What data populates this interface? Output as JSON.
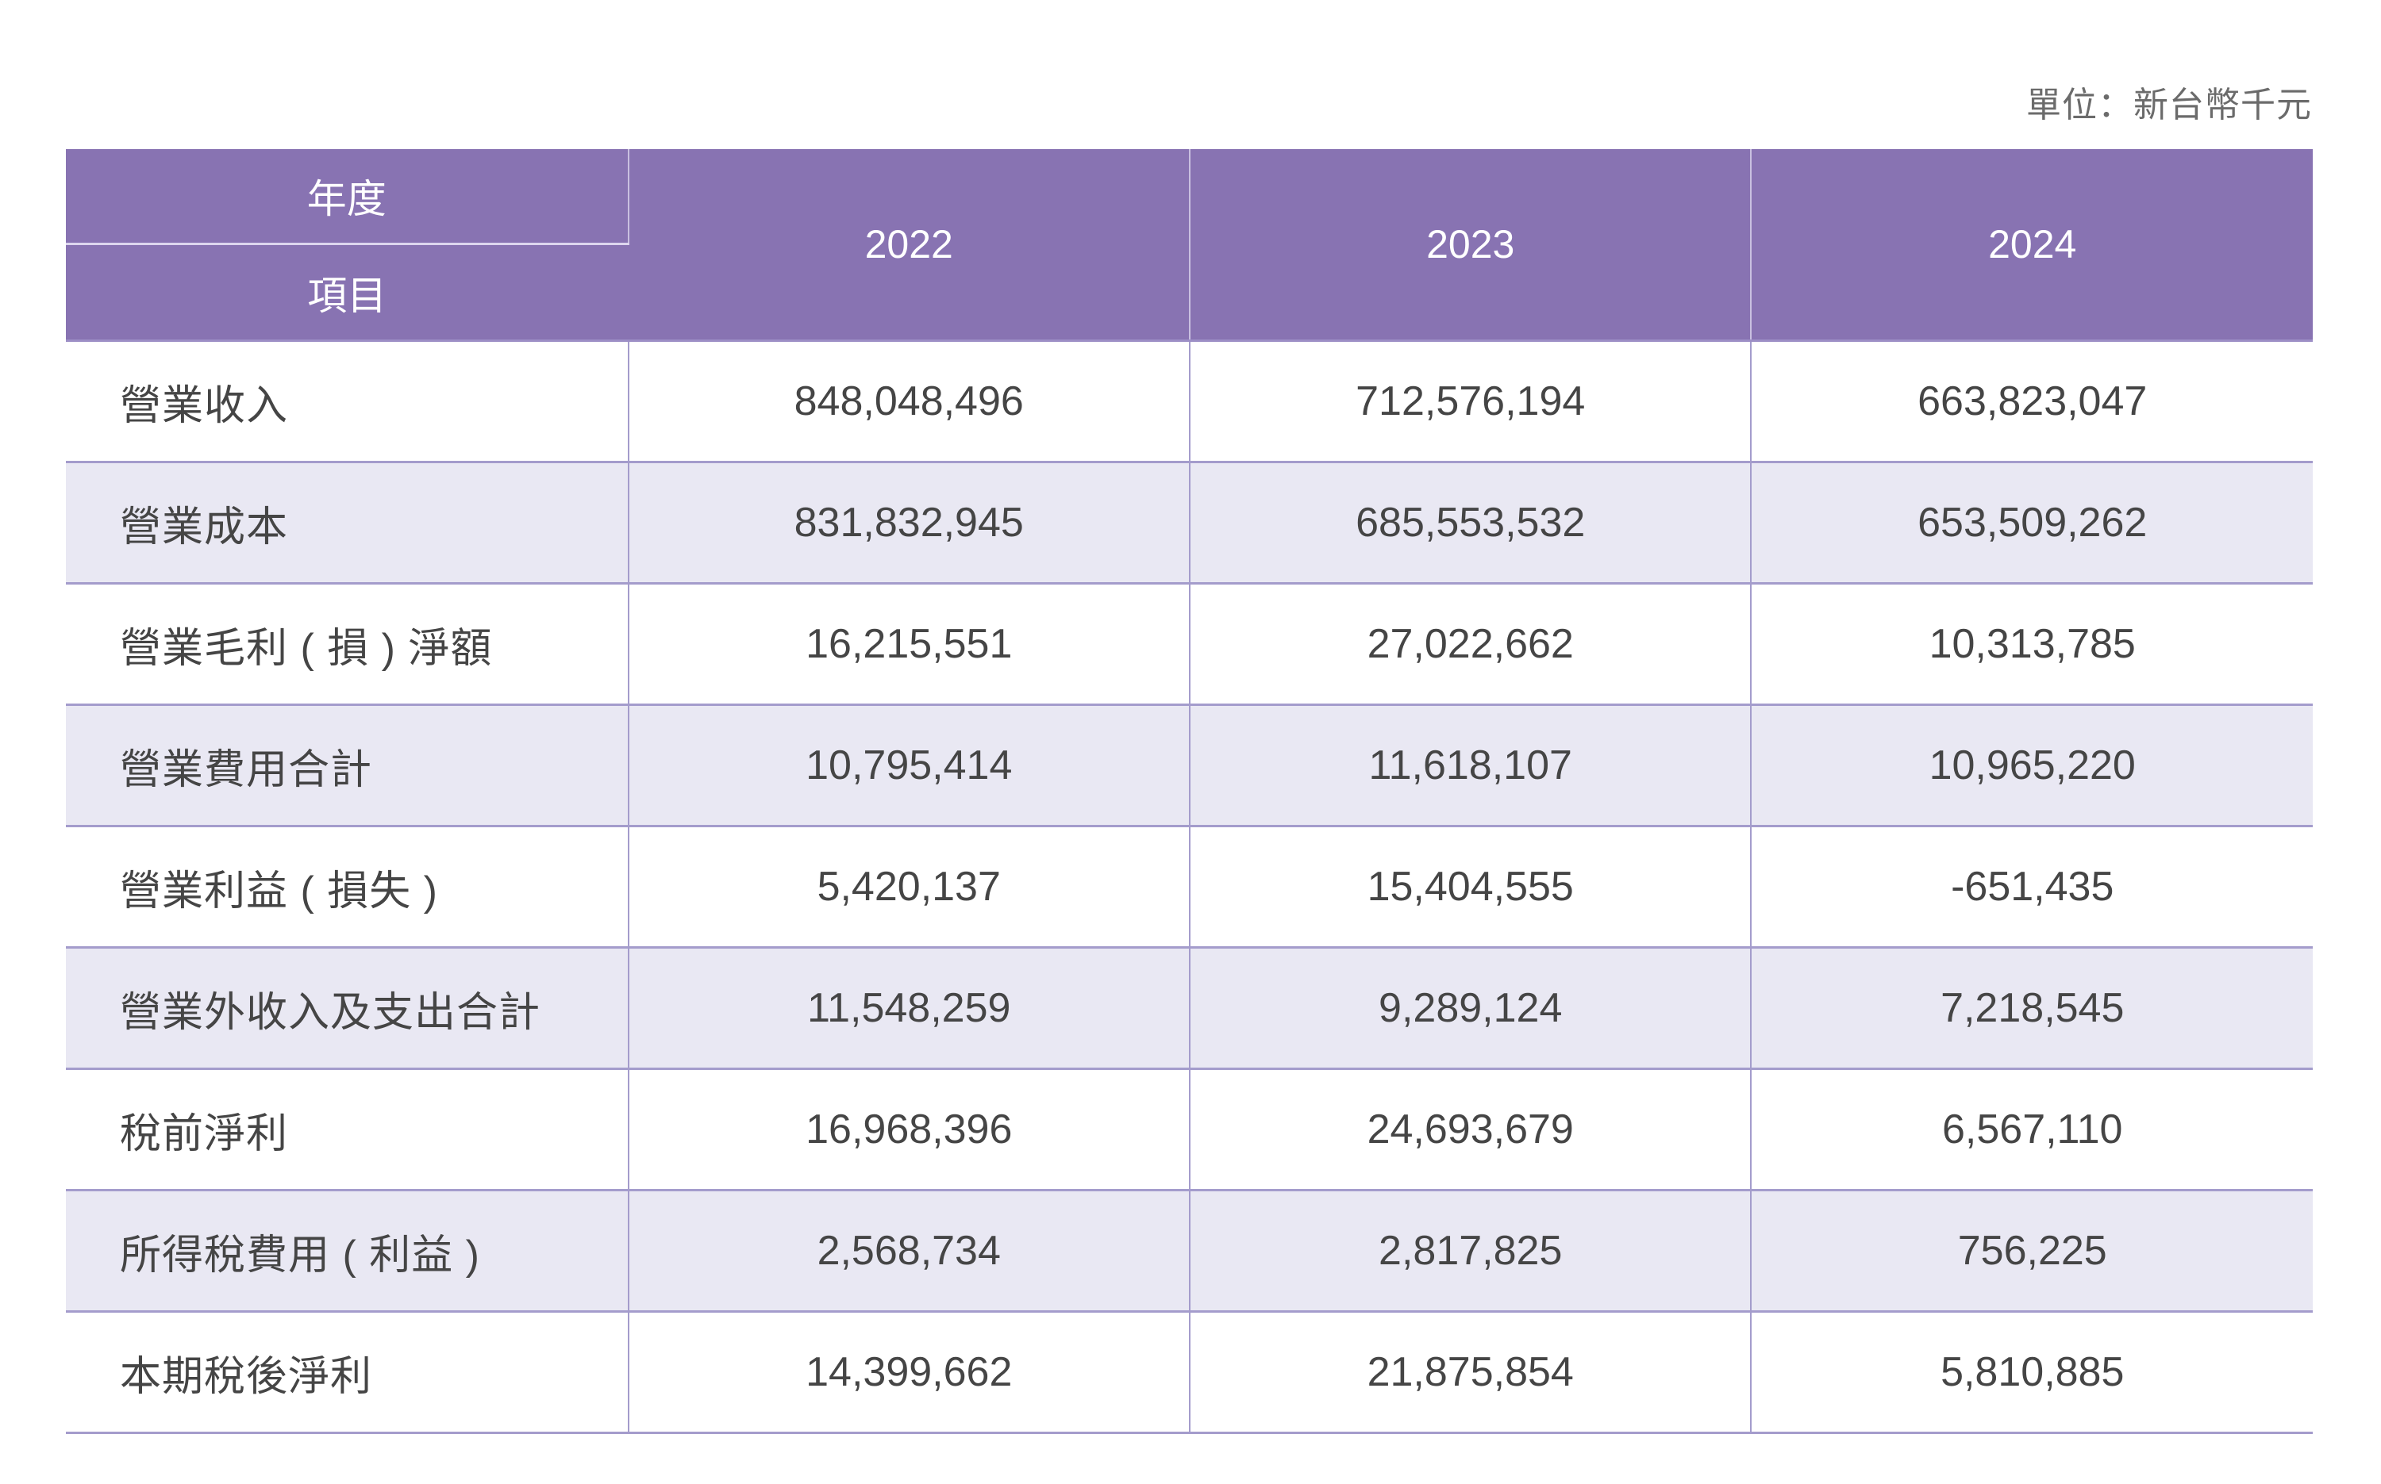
{
  "unit_label": "單位：新台幣千元",
  "header": {
    "corner_top": "年度",
    "corner_bottom": "項目",
    "years": [
      "2022",
      "2023",
      "2024"
    ]
  },
  "colors": {
    "header_bg": "#8873b2",
    "header_text": "#ffffff",
    "alt_row_bg": "#e9e8f3",
    "grid_line": "#a49ccc",
    "body_text": "#454545"
  },
  "rows": [
    {
      "item": "營業收入",
      "values": [
        "848,048,496",
        "712,576,194",
        "663,823,047"
      ]
    },
    {
      "item": "營業成本",
      "values": [
        "831,832,945",
        "685,553,532",
        "653,509,262"
      ]
    },
    {
      "item": "營業毛利 ( 損 ) 淨額",
      "values": [
        "16,215,551",
        "27,022,662",
        "10,313,785"
      ]
    },
    {
      "item": "營業費用合計",
      "values": [
        "10,795,414",
        "11,618,107",
        "10,965,220"
      ]
    },
    {
      "item": "營業利益 ( 損失 )",
      "values": [
        "5,420,137",
        "15,404,555",
        "-651,435"
      ]
    },
    {
      "item": "營業外收入及支出合計",
      "values": [
        "11,548,259",
        "9,289,124",
        "7,218,545"
      ]
    },
    {
      "item": "稅前淨利",
      "values": [
        "16,968,396",
        "24,693,679",
        "6,567,110"
      ]
    },
    {
      "item": "所得稅費用 ( 利益 )",
      "values": [
        "2,568,734",
        "2,817,825",
        "756,225"
      ]
    },
    {
      "item": "本期稅後淨利",
      "values": [
        "14,399,662",
        "21,875,854",
        "5,810,885"
      ]
    }
  ]
}
